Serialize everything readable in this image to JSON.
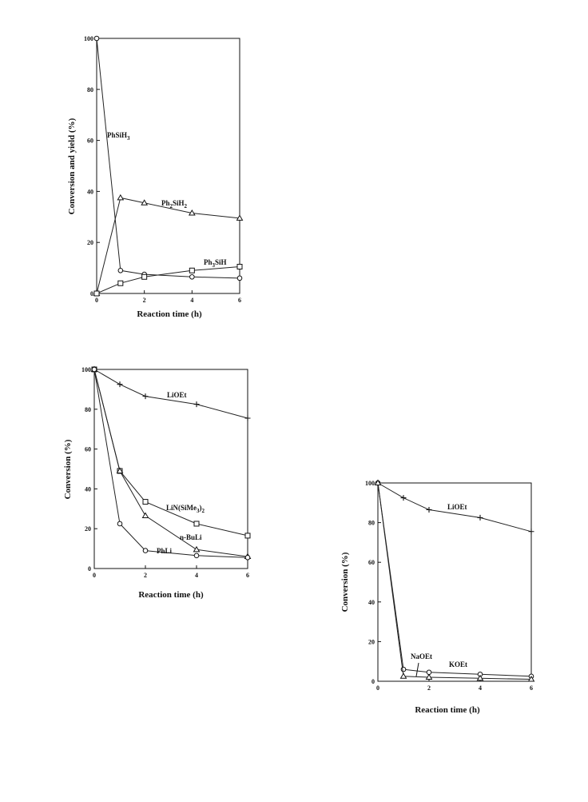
{
  "chart_data": [
    {
      "type": "line",
      "title": "",
      "xlabel": "Reaction time  (h)",
      "ylabel": "Conversion and yield  (%)",
      "xlim": [
        0,
        6
      ],
      "ylim": [
        0,
        100
      ],
      "xticks": [
        0,
        2,
        4,
        6
      ],
      "yticks": [
        0,
        20,
        40,
        60,
        80,
        100
      ],
      "series": [
        {
          "name": "PhSiH",
          "sub": "3",
          "marker": "circle",
          "x": [
            0,
            1,
            2,
            4,
            6
          ],
          "y": [
            100,
            9,
            7.5,
            6.5,
            6
          ]
        },
        {
          "name": "Ph",
          "sub": "2",
          "after": "SiH",
          "sub2": "2",
          "marker": "triangle",
          "x": [
            0,
            1,
            2,
            4,
            6
          ],
          "y": [
            0,
            37.5,
            35.5,
            31.5,
            29.5
          ]
        },
        {
          "name": "Ph",
          "sub": "3",
          "after": "SiH",
          "marker": "square",
          "x": [
            0,
            1,
            2,
            4,
            6
          ],
          "y": [
            0,
            4,
            6.5,
            9,
            10.5
          ]
        }
      ]
    },
    {
      "type": "line",
      "title": "",
      "xlabel": "Reaction  time   (h)",
      "ylabel": "Conversion   (%)",
      "xlim": [
        0,
        6
      ],
      "ylim": [
        0,
        100
      ],
      "xticks": [
        0,
        2,
        4,
        6
      ],
      "yticks": [
        0,
        20,
        40,
        60,
        80,
        100
      ],
      "series": [
        {
          "name": "LiOEt",
          "marker": "plus",
          "x": [
            0,
            1,
            2,
            4,
            6
          ],
          "y": [
            100,
            92.5,
            86.5,
            82.5,
            75.5
          ]
        },
        {
          "name": "LiN(SiMe",
          "sub": "3",
          "after": ")",
          "sub2": "2",
          "marker": "square",
          "x": [
            0,
            1,
            2,
            4,
            6
          ],
          "y": [
            100,
            49,
            33.5,
            22.5,
            16.5
          ]
        },
        {
          "name": "n-BuLi",
          "marker": "triangle",
          "x": [
            0,
            1,
            2,
            4,
            6
          ],
          "y": [
            100,
            49,
            26.5,
            9.5,
            6
          ]
        },
        {
          "name": "PhLi",
          "marker": "circle",
          "x": [
            0,
            1,
            2,
            4,
            6
          ],
          "y": [
            100,
            22.5,
            9,
            6.5,
            5.5
          ]
        }
      ]
    },
    {
      "type": "line",
      "title": "",
      "xlabel": "Reaction time  (h)",
      "ylabel": "Conversion    (%)",
      "xlim": [
        0,
        6
      ],
      "ylim": [
        0,
        100
      ],
      "xticks": [
        0,
        2,
        4,
        6
      ],
      "yticks": [
        0,
        20,
        40,
        60,
        80,
        100
      ],
      "series": [
        {
          "name": "LiOEt",
          "marker": "plus",
          "x": [
            0,
            1,
            2,
            4,
            6
          ],
          "y": [
            100,
            92.5,
            86.5,
            82.5,
            75.5
          ]
        },
        {
          "name": "KOEt",
          "marker": "circle",
          "x": [
            0,
            1,
            2,
            4,
            6
          ],
          "y": [
            100,
            6,
            4.5,
            3.5,
            2.5
          ]
        },
        {
          "name": "NaOEt",
          "marker": "triangle",
          "x": [
            0,
            1,
            2,
            4,
            6
          ],
          "y": [
            100,
            2.5,
            2,
            1.5,
            1
          ]
        }
      ]
    }
  ]
}
